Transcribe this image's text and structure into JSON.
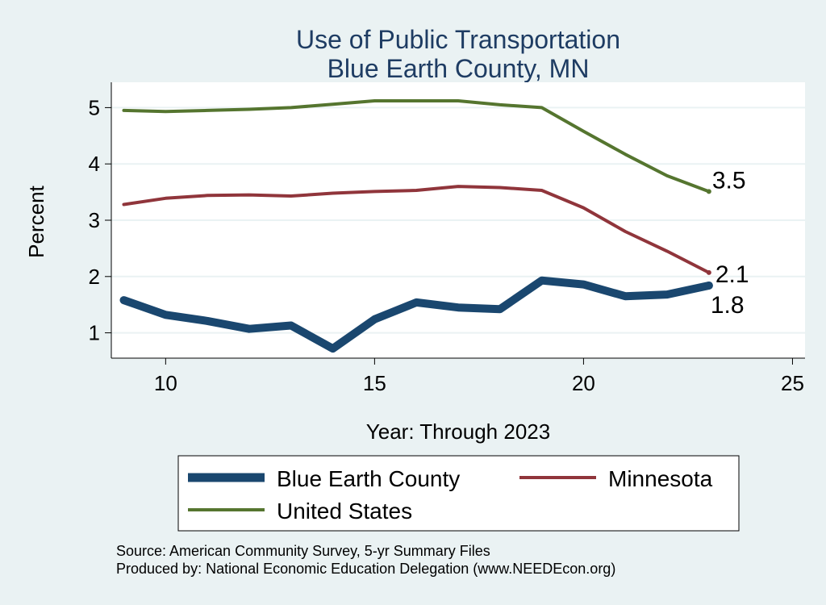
{
  "chart_data": {
    "type": "line",
    "title": "Use of Public Transportation",
    "subtitle": "Blue Earth County, MN",
    "xlabel": "Year: Through 2023",
    "ylabel": "Percent",
    "xlim": [
      8.7,
      25.3
    ],
    "ylim": [
      0.55,
      5.45
    ],
    "xticks": [
      10,
      15,
      20,
      25
    ],
    "yticks": [
      1,
      2,
      3,
      4,
      5
    ],
    "grid": "horizontal",
    "legend_position": "bottom",
    "x": [
      9,
      10,
      11,
      12,
      13,
      14,
      15,
      16,
      17,
      18,
      19,
      20,
      21,
      22,
      23
    ],
    "series": [
      {
        "name": "Blue Earth County",
        "color": "#1a476f",
        "values": [
          1.58,
          1.32,
          1.21,
          1.07,
          1.13,
          0.72,
          1.24,
          1.54,
          1.45,
          1.42,
          1.93,
          1.86,
          1.65,
          1.68,
          1.84
        ],
        "end_label": "1.8"
      },
      {
        "name": "Minnesota",
        "color": "#90353b",
        "values": [
          3.28,
          3.39,
          3.44,
          3.45,
          3.43,
          3.48,
          3.51,
          3.53,
          3.6,
          3.58,
          3.53,
          3.22,
          2.8,
          2.45,
          2.07
        ],
        "end_label": "2.1"
      },
      {
        "name": "United States",
        "color": "#55752f",
        "values": [
          4.95,
          4.93,
          4.95,
          4.97,
          5.0,
          5.06,
          5.12,
          5.12,
          5.12,
          5.05,
          5.0,
          4.58,
          4.17,
          3.79,
          3.51
        ],
        "end_label": "3.5"
      }
    ]
  },
  "footer": {
    "source": "Source: American Community Survey, 5-yr Summary Files",
    "produced": "Produced by: National Economic Education Delegation (www.NEEDEcon.org)"
  }
}
